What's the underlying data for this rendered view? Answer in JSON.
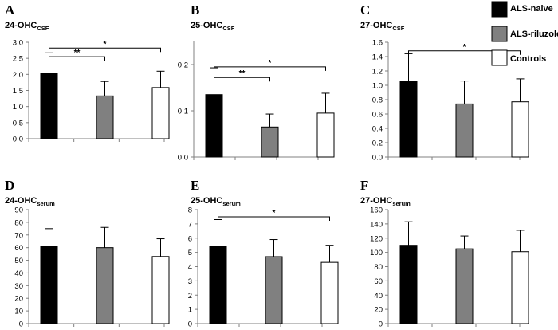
{
  "figure": {
    "legend": [
      {
        "label": "ALS-naive",
        "color": "#000000"
      },
      {
        "label": "ALS-riluzole",
        "color": "#808080"
      },
      {
        "label": "Controls",
        "color": "#ffffff"
      }
    ]
  },
  "chart_data": [
    {
      "type": "bar",
      "letter": "A",
      "title": "24-OHC",
      "title_sub": "CSF",
      "categories": [
        "ALS-naive",
        "ALS-riluzole",
        "Controls"
      ],
      "values": [
        2.03,
        1.33,
        1.59
      ],
      "errors": [
        0.64,
        0.45,
        0.51
      ],
      "colors": [
        "#000000",
        "#808080",
        "#ffffff"
      ],
      "ylim": [
        0,
        3.0
      ],
      "ticks": [
        0,
        0.5,
        1.0,
        1.5,
        2.0,
        2.5,
        3.0
      ],
      "tick_labels": [
        "0.0",
        "0.5",
        "1.0",
        "1.5",
        "2.0",
        "2.5",
        "3.0"
      ],
      "significance": [
        {
          "from": 0,
          "to": 1,
          "label": "**",
          "level": 2.55
        },
        {
          "from": 0,
          "to": 2,
          "label": "*",
          "level": 2.82
        }
      ]
    },
    {
      "type": "bar",
      "letter": "B",
      "title": "25-OHC",
      "title_sub": "CSF",
      "categories": [
        "ALS-naive",
        "ALS-riluzole",
        "Controls"
      ],
      "values": [
        0.135,
        0.065,
        0.095
      ],
      "errors": [
        0.058,
        0.028,
        0.043
      ],
      "colors": [
        "#000000",
        "#808080",
        "#ffffff"
      ],
      "ylim": [
        0,
        0.25
      ],
      "ticks": [
        0,
        0.1,
        0.2
      ],
      "tick_labels": [
        "0.0",
        "0.1",
        "0.2"
      ],
      "significance": [
        {
          "from": 0,
          "to": 1,
          "label": "**",
          "level": 0.172
        },
        {
          "from": 0,
          "to": 2,
          "label": "*",
          "level": 0.195
        }
      ]
    },
    {
      "type": "bar",
      "letter": "C",
      "title": "27-OHC",
      "title_sub": "CSF",
      "categories": [
        "ALS-naive",
        "ALS-riluzole",
        "Controls"
      ],
      "values": [
        1.06,
        0.74,
        0.77
      ],
      "errors": [
        0.38,
        0.32,
        0.32
      ],
      "colors": [
        "#000000",
        "#808080",
        "#ffffff"
      ],
      "ylim": [
        0,
        1.6
      ],
      "ticks": [
        0,
        0.2,
        0.4,
        0.6,
        0.8,
        1.0,
        1.2,
        1.4,
        1.6
      ],
      "tick_labels": [
        "0.0",
        "0.2",
        "0.4",
        "0.6",
        "0.8",
        "1.0",
        "1.2",
        "1.4",
        "1.6"
      ],
      "significance": [
        {
          "from": 0,
          "to": 2,
          "label": "*",
          "level": 1.48
        }
      ]
    },
    {
      "type": "bar",
      "letter": "D",
      "title": "24-OHC",
      "title_sub": "serum",
      "categories": [
        "ALS-naive",
        "ALS-riluzole",
        "Controls"
      ],
      "values": [
        61,
        60,
        53
      ],
      "errors": [
        14,
        16,
        14
      ],
      "colors": [
        "#000000",
        "#808080",
        "#ffffff"
      ],
      "ylim": [
        0,
        90
      ],
      "ticks": [
        0,
        10,
        20,
        30,
        40,
        50,
        60,
        70,
        80,
        90
      ],
      "tick_labels": [
        "0",
        "10",
        "20",
        "30",
        "40",
        "50",
        "60",
        "70",
        "80",
        "90"
      ],
      "significance": []
    },
    {
      "type": "bar",
      "letter": "E",
      "title": "25-OHC",
      "title_sub": "serum",
      "categories": [
        "ALS-naive",
        "ALS-riluzole",
        "Controls"
      ],
      "values": [
        5.4,
        4.7,
        4.3
      ],
      "errors": [
        1.9,
        1.2,
        1.2
      ],
      "colors": [
        "#000000",
        "#808080",
        "#ffffff"
      ],
      "ylim": [
        0,
        8
      ],
      "ticks": [
        0,
        1,
        2,
        3,
        4,
        5,
        6,
        7,
        8
      ],
      "tick_labels": [
        "0",
        "1",
        "2",
        "3",
        "4",
        "5",
        "6",
        "7",
        "8"
      ],
      "significance": [
        {
          "from": 0,
          "to": 2,
          "label": "*",
          "level": 7.5
        }
      ]
    },
    {
      "type": "bar",
      "letter": "F",
      "title": "27-OHC",
      "title_sub": "serum",
      "categories": [
        "ALS-naive",
        "ALS-riluzole",
        "Controls"
      ],
      "values": [
        110,
        105,
        101
      ],
      "errors": [
        33,
        18,
        30
      ],
      "colors": [
        "#000000",
        "#808080",
        "#ffffff"
      ],
      "ylim": [
        0,
        160
      ],
      "ticks": [
        0,
        20,
        40,
        60,
        80,
        100,
        120,
        140,
        160
      ],
      "tick_labels": [
        "0",
        "20",
        "40",
        "60",
        "80",
        "100",
        "120",
        "140",
        "160"
      ],
      "significance": []
    }
  ]
}
